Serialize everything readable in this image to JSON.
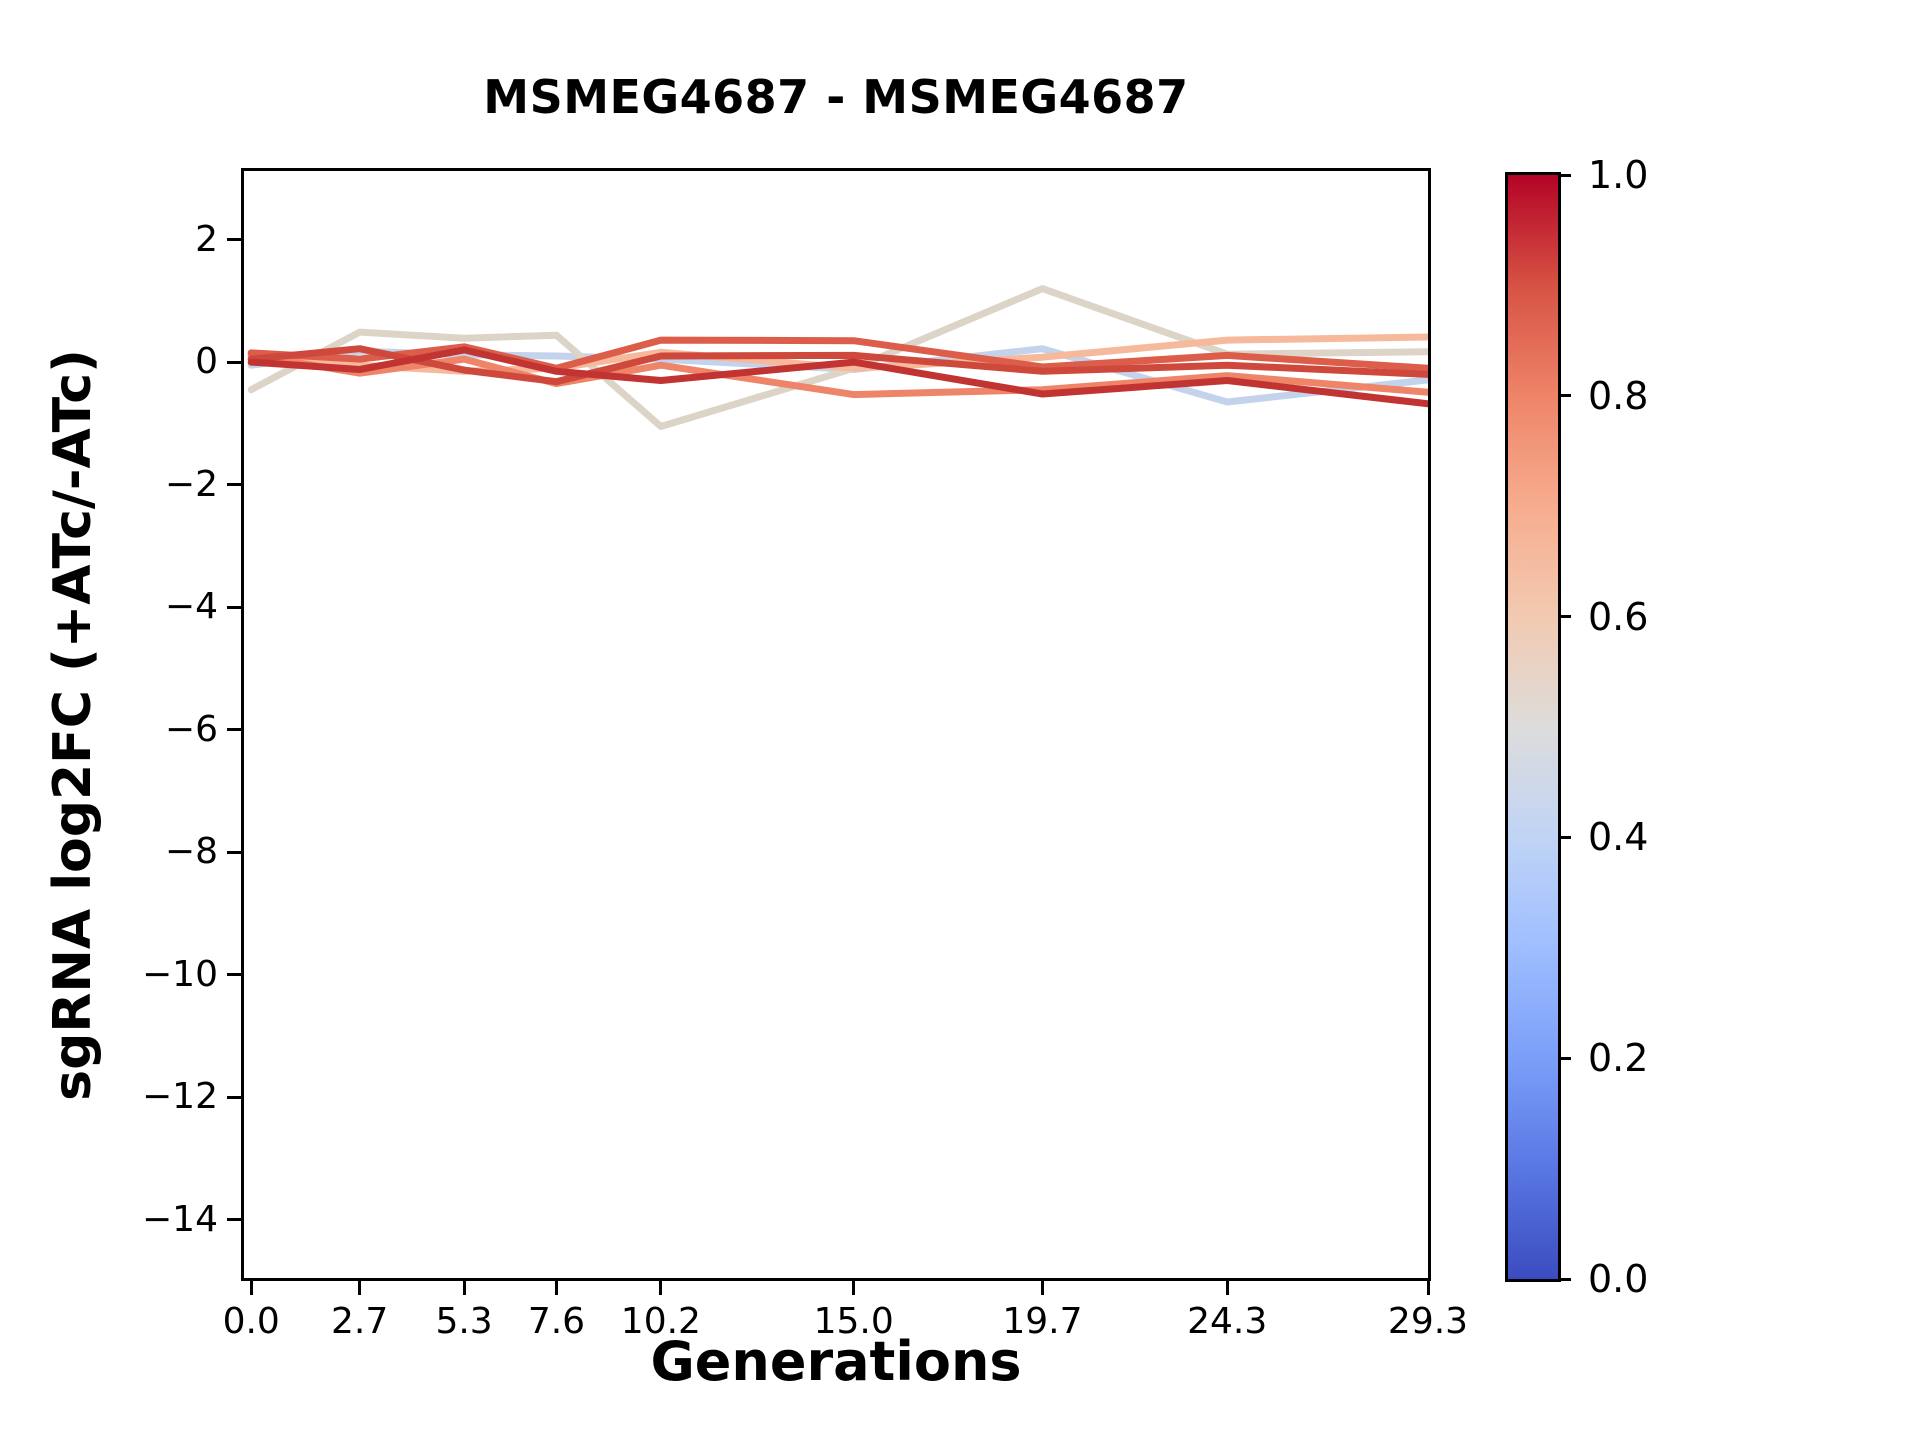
{
  "figure": {
    "title": "MSMEG4687 - MSMEG4687",
    "xlabel": "Generations",
    "ylabel": "sgRNA log2FC (+ATc/-ATc)"
  },
  "chart_data": {
    "type": "line",
    "title": "MSMEG4687 - MSMEG4687",
    "xlabel": "Generations",
    "ylabel": "sgRNA log2FC (+ATc/-ATc)",
    "grid": false,
    "legend": "none (colorbar encodes line color value)",
    "x": [
      0.0,
      2.7,
      5.3,
      7.6,
      10.2,
      15.0,
      19.7,
      24.3,
      29.3
    ],
    "xtick_labels": [
      "0.0",
      "2.7",
      "5.3",
      "7.6",
      "10.2",
      "15.0",
      "19.7",
      "24.3",
      "29.3"
    ],
    "yticks": [
      2,
      0,
      -2,
      -4,
      -6,
      -8,
      -10,
      -12,
      -14
    ],
    "xlim": [
      -0.18,
      29.3
    ],
    "ylim": [
      -14.95,
      3.12
    ],
    "line_width": 7,
    "series": [
      {
        "color_value": 0.4,
        "color": "#c3d3ec",
        "values": [
          -0.05,
          0.18,
          0.12,
          0.1,
          0.05,
          -0.12,
          0.22,
          -0.65,
          -0.29
        ]
      },
      {
        "color_value": 0.55,
        "color": "#ddd4c8",
        "values": [
          -0.45,
          0.49,
          0.39,
          0.44,
          -1.05,
          -0.1,
          1.2,
          0.13,
          0.17
        ]
      },
      {
        "color_value": 0.63,
        "color": "#f6b99b",
        "values": [
          0.1,
          -0.05,
          -0.15,
          -0.1,
          0.16,
          -0.1,
          0.08,
          0.36,
          0.41
        ]
      },
      {
        "color_value": 0.75,
        "color": "#ee8468",
        "values": [
          0.12,
          -0.18,
          0.05,
          -0.35,
          -0.05,
          -0.53,
          -0.45,
          -0.22,
          -0.49
        ]
      },
      {
        "color_value": 0.85,
        "color": "#dc5d4a",
        "values": [
          0.15,
          0.05,
          0.25,
          -0.1,
          0.36,
          0.35,
          -0.08,
          0.11,
          -0.1
        ]
      },
      {
        "color_value": 0.9,
        "color": "#cf483c",
        "values": [
          0.05,
          0.22,
          -0.13,
          -0.32,
          0.1,
          0.11,
          -0.15,
          -0.05,
          -0.2
        ]
      },
      {
        "color_value": 0.95,
        "color": "#c23431",
        "values": [
          0.0,
          -0.12,
          0.2,
          -0.15,
          -0.3,
          0.0,
          -0.52,
          -0.3,
          -0.68
        ]
      }
    ],
    "colorbar": {
      "colormap": "coolwarm",
      "range": [
        0.0,
        1.0
      ],
      "tick_labels": [
        "1.0",
        "0.8",
        "0.6",
        "0.4",
        "0.2",
        "0.0"
      ],
      "tick_values": [
        1.0,
        0.8,
        0.6,
        0.4,
        0.2,
        0.0
      ],
      "gradient_stops_bottom_to_top": [
        "#3b4cc0",
        "#5977e3",
        "#7b9ff9",
        "#9ebeff",
        "#c0d4f5",
        "#dddcdb",
        "#f2cab1",
        "#f7ac8e",
        "#ee8468",
        "#d65244",
        "#b40426"
      ]
    }
  }
}
